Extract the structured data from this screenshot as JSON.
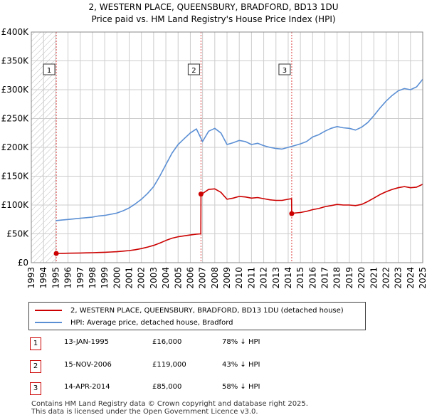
{
  "title_line1": "2, WESTERN PLACE, QUEENSBURY, BRADFORD, BD13 1DU",
  "title_line2": "Price paid vs. HM Land Registry's House Price Index (HPI)",
  "colors": {
    "property": "#cc0000",
    "hpi": "#5b8fd4",
    "grid": "#cccccc",
    "hatch": "#bbbbbb",
    "sale_vline": "#dd4444",
    "axis_bg": "#ffffff"
  },
  "legend": {
    "property_label": "2, WESTERN PLACE, QUEENSBURY, BRADFORD, BD13 1DU (detached house)",
    "hpi_label": "HPI: Average price, detached house, Bradford"
  },
  "sales": [
    {
      "num": "1",
      "date": "13-JAN-1995",
      "price": "£16,000",
      "hpi": "78% ↓ HPI"
    },
    {
      "num": "2",
      "date": "15-NOV-2006",
      "price": "£119,000",
      "hpi": "43% ↓ HPI"
    },
    {
      "num": "3",
      "date": "14-APR-2014",
      "price": "£85,000",
      "hpi": "58% ↓ HPI"
    }
  ],
  "footer_line1": "Contains HM Land Registry data © Crown copyright and database right 2025.",
  "footer_line2": "This data is licensed under the Open Government Licence v3.0.",
  "chart_data": {
    "type": "line",
    "xlim": [
      1993,
      2025
    ],
    "ylim": [
      0,
      400000
    ],
    "hatched_until": 1995.04,
    "y_ticks": [
      {
        "value": 0,
        "label": "£0"
      },
      {
        "value": 50000,
        "label": "£50K"
      },
      {
        "value": 100000,
        "label": "£100K"
      },
      {
        "value": 150000,
        "label": "£150K"
      },
      {
        "value": 200000,
        "label": "£200K"
      },
      {
        "value": 250000,
        "label": "£250K"
      },
      {
        "value": 300000,
        "label": "£300K"
      },
      {
        "value": 350000,
        "label": "£350K"
      },
      {
        "value": 400000,
        "label": "£400K"
      }
    ],
    "x_ticks": [
      "1993",
      "1994",
      "1995",
      "1996",
      "1997",
      "1998",
      "1999",
      "2000",
      "2001",
      "2002",
      "2003",
      "2004",
      "2005",
      "2006",
      "2007",
      "2008",
      "2009",
      "2010",
      "2011",
      "2012",
      "2013",
      "2014",
      "2015",
      "2016",
      "2017",
      "2018",
      "2019",
      "2020",
      "2021",
      "2022",
      "2023",
      "2024",
      "2025"
    ],
    "sale_markers": [
      {
        "label": "1",
        "x": 1995.04,
        "y": 16000
      },
      {
        "label": "2",
        "x": 2006.87,
        "y": 119000
      },
      {
        "label": "3",
        "x": 2014.29,
        "y": 85000
      }
    ],
    "series": [
      {
        "name": "HPI: Average price, detached house, Bradford",
        "x": [
          1995.0,
          1995.5,
          1996.0,
          1996.5,
          1997.0,
          1997.5,
          1998.0,
          1998.5,
          1999.0,
          1999.5,
          2000.0,
          2000.5,
          2001.0,
          2001.5,
          2002.0,
          2002.5,
          2003.0,
          2003.5,
          2004.0,
          2004.5,
          2005.0,
          2005.5,
          2006.0,
          2006.5,
          2007.0,
          2007.5,
          2008.0,
          2008.5,
          2009.0,
          2009.5,
          2010.0,
          2010.5,
          2011.0,
          2011.5,
          2012.0,
          2012.5,
          2013.0,
          2013.5,
          2014.0,
          2014.5,
          2015.0,
          2015.5,
          2016.0,
          2016.5,
          2017.0,
          2017.5,
          2018.0,
          2018.5,
          2019.0,
          2019.5,
          2020.0,
          2020.5,
          2021.0,
          2021.5,
          2022.0,
          2022.5,
          2023.0,
          2023.5,
          2024.0,
          2024.5,
          2025.0
        ],
        "values": [
          73000,
          74000,
          75000,
          76000,
          77000,
          78000,
          79000,
          81000,
          82000,
          84000,
          86000,
          90000,
          95000,
          102000,
          110000,
          120000,
          132000,
          150000,
          170000,
          190000,
          205000,
          215000,
          225000,
          232000,
          210000,
          228000,
          233000,
          225000,
          205000,
          208000,
          212000,
          210000,
          205000,
          207000,
          203000,
          200000,
          198000,
          197000,
          200000,
          203000,
          206000,
          210000,
          218000,
          222000,
          228000,
          233000,
          236000,
          234000,
          233000,
          230000,
          235000,
          243000,
          255000,
          268000,
          280000,
          290000,
          298000,
          302000,
          300000,
          305000,
          318000
        ]
      },
      {
        "name": "2, WESTERN PLACE, QUEENSBURY, BRADFORD, BD13 1DU (detached house)",
        "x": [
          1995.04,
          1995.5,
          1996.0,
          1996.5,
          1997.0,
          1997.5,
          1998.0,
          1998.5,
          1999.0,
          1999.5,
          2000.0,
          2000.5,
          2001.0,
          2001.5,
          2002.0,
          2002.5,
          2003.0,
          2003.5,
          2004.0,
          2004.5,
          2005.0,
          2005.5,
          2006.0,
          2006.5,
          2006.86,
          2006.87,
          2007.0,
          2007.5,
          2008.0,
          2008.5,
          2009.0,
          2009.5,
          2010.0,
          2010.5,
          2011.0,
          2011.5,
          2012.0,
          2012.5,
          2013.0,
          2013.5,
          2014.0,
          2014.28,
          2014.29,
          2014.5,
          2015.0,
          2015.5,
          2016.0,
          2016.5,
          2017.0,
          2017.5,
          2018.0,
          2018.5,
          2019.0,
          2019.5,
          2020.0,
          2020.5,
          2021.0,
          2021.5,
          2022.0,
          2022.5,
          2023.0,
          2023.5,
          2024.0,
          2024.5,
          2025.0
        ],
        "values": [
          16000,
          16200,
          16400,
          16600,
          16800,
          17000,
          17300,
          17700,
          18000,
          18500,
          19000,
          20000,
          21000,
          22500,
          24500,
          27000,
          30000,
          34000,
          38500,
          42500,
          45000,
          46500,
          48000,
          49500,
          50000,
          119000,
          120000,
          127000,
          128000,
          122000,
          110000,
          112000,
          115000,
          114000,
          112000,
          113000,
          111000,
          109000,
          108000,
          108000,
          110000,
          111000,
          85000,
          86000,
          87000,
          89000,
          92000,
          94000,
          97000,
          99000,
          101000,
          100000,
          100000,
          99000,
          101000,
          106000,
          112000,
          118000,
          123000,
          127000,
          130000,
          132000,
          130000,
          131000,
          136000
        ]
      }
    ]
  }
}
